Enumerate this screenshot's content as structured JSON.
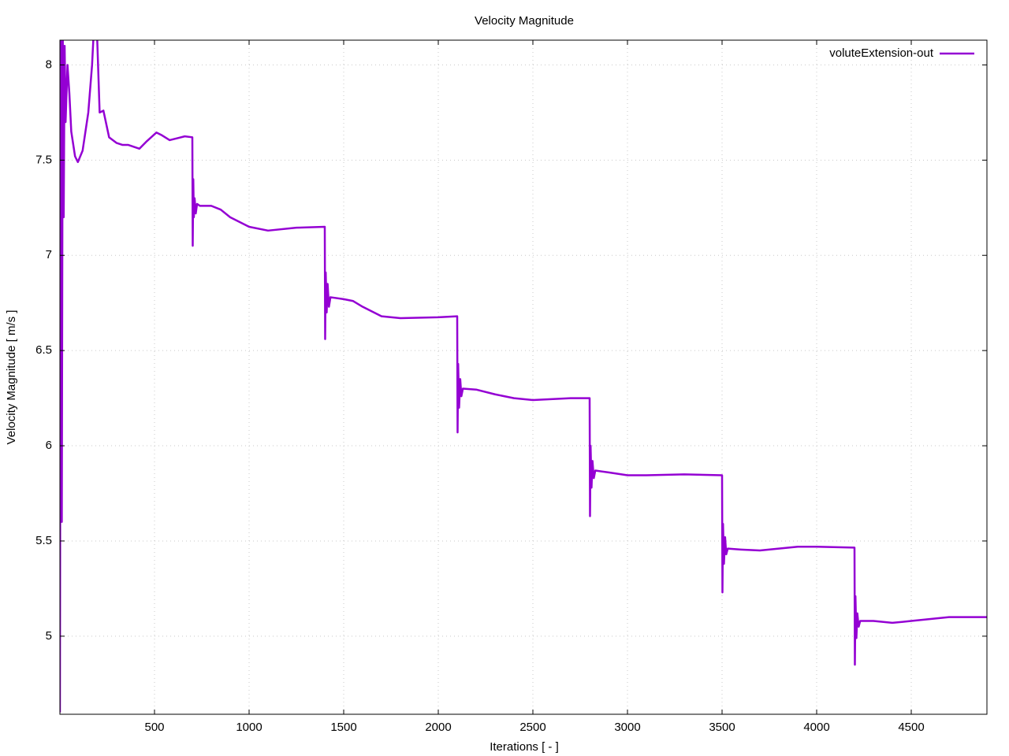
{
  "chart_data": {
    "type": "line",
    "title": "Velocity Magnitude",
    "x_label": "Iterations [ - ]",
    "y_label": "Velocity Magnitude [ m/s ]",
    "xlim": [
      0,
      4900
    ],
    "ylim": [
      4.59,
      8.13
    ],
    "xticks": [
      500,
      1000,
      1500,
      2000,
      2500,
      3000,
      3500,
      4000,
      4500
    ],
    "yticks": [
      5,
      5.5,
      6,
      6.5,
      7,
      7.5,
      8
    ],
    "grid": true,
    "legend": "top-right",
    "x": [
      0,
      5,
      10,
      15,
      20,
      25,
      30,
      40,
      50,
      60,
      80,
      95,
      120,
      150,
      170,
      180,
      195,
      210,
      230,
      260,
      300,
      330,
      360,
      420,
      460,
      510,
      540,
      580,
      620,
      660,
      700,
      702,
      705,
      708,
      712,
      718,
      725,
      740,
      800,
      850,
      900,
      1000,
      1100,
      1250,
      1400,
      1402,
      1405,
      1410,
      1415,
      1422,
      1430,
      1500,
      1550,
      1600,
      1700,
      1800,
      2000,
      2100,
      2102,
      2105,
      2110,
      2116,
      2122,
      2130,
      2200,
      2300,
      2400,
      2500,
      2700,
      2800,
      2802,
      2805,
      2810,
      2815,
      2822,
      2830,
      2900,
      3000,
      3100,
      3300,
      3500,
      3502,
      3505,
      3510,
      3516,
      3522,
      3530,
      3600,
      3700,
      3900,
      4000,
      4200,
      4202,
      4205,
      4210,
      4215,
      4222,
      4230,
      4300,
      4400,
      4500,
      4700,
      4900
    ],
    "series": [
      {
        "name": "voluteExtension-out",
        "color": "#9400d3",
        "values": [
          4.6,
          8.2,
          5.6,
          8.2,
          7.2,
          8.1,
          7.7,
          8.0,
          7.85,
          7.65,
          7.52,
          7.49,
          7.55,
          7.75,
          8.0,
          8.2,
          8.2,
          7.75,
          7.76,
          7.62,
          7.59,
          7.58,
          7.58,
          7.56,
          7.6,
          7.645,
          7.63,
          7.605,
          7.615,
          7.625,
          7.62,
          7.05,
          7.4,
          7.2,
          7.3,
          7.22,
          7.27,
          7.26,
          7.26,
          7.24,
          7.2,
          7.15,
          7.13,
          7.145,
          7.15,
          6.56,
          6.91,
          6.7,
          6.85,
          6.73,
          6.78,
          6.77,
          6.76,
          6.73,
          6.68,
          6.67,
          6.675,
          6.68,
          6.07,
          6.43,
          6.2,
          6.35,
          6.26,
          6.3,
          6.295,
          6.27,
          6.25,
          6.24,
          6.25,
          6.25,
          5.63,
          6.0,
          5.78,
          5.92,
          5.83,
          5.87,
          5.86,
          5.845,
          5.845,
          5.85,
          5.845,
          5.23,
          5.59,
          5.38,
          5.52,
          5.43,
          5.46,
          5.455,
          5.45,
          5.47,
          5.47,
          5.465,
          4.85,
          5.21,
          4.99,
          5.12,
          5.05,
          5.08,
          5.08,
          5.07,
          5.08,
          5.1,
          5.1
        ]
      }
    ]
  }
}
